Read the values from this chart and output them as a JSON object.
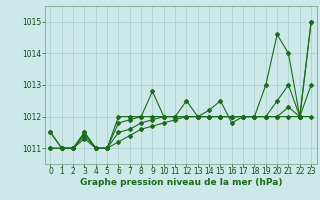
{
  "xlabel": "Graphe pression niveau de la mer (hPa)",
  "ylabel": "",
  "background_color": "#cce8e8",
  "grid_color": "#aacccc",
  "line_color": "#1a6b1a",
  "x": [
    0,
    1,
    2,
    3,
    4,
    5,
    6,
    7,
    8,
    9,
    10,
    11,
    12,
    13,
    14,
    15,
    16,
    17,
    18,
    19,
    20,
    21,
    22,
    23
  ],
  "series": [
    [
      1011.5,
      1011.0,
      1011.0,
      1011.5,
      1011.0,
      1011.0,
      1012.0,
      1012.0,
      1012.0,
      1012.8,
      1012.0,
      1012.0,
      1012.5,
      1012.0,
      1012.2,
      1012.5,
      1011.8,
      1012.0,
      1012.0,
      1013.0,
      1014.6,
      1014.0,
      1012.0,
      1015.0
    ],
    [
      1011.5,
      1011.0,
      1011.0,
      1011.5,
      1011.0,
      1011.0,
      1011.8,
      1011.9,
      1012.0,
      1012.0,
      1012.0,
      1012.0,
      1012.0,
      1012.0,
      1012.0,
      1012.0,
      1012.0,
      1012.0,
      1012.0,
      1012.0,
      1012.5,
      1013.0,
      1012.0,
      1015.0
    ],
    [
      1011.0,
      1011.0,
      1011.0,
      1011.4,
      1011.0,
      1011.0,
      1011.5,
      1011.6,
      1011.8,
      1011.9,
      1012.0,
      1012.0,
      1012.0,
      1012.0,
      1012.0,
      1012.0,
      1012.0,
      1012.0,
      1012.0,
      1012.0,
      1012.0,
      1012.3,
      1012.0,
      1013.0
    ],
    [
      1011.0,
      1011.0,
      1011.0,
      1011.3,
      1011.0,
      1011.0,
      1011.2,
      1011.4,
      1011.6,
      1011.7,
      1011.8,
      1011.9,
      1012.0,
      1012.0,
      1012.0,
      1012.0,
      1012.0,
      1012.0,
      1012.0,
      1012.0,
      1012.0,
      1012.0,
      1012.0,
      1012.0
    ]
  ],
  "ylim": [
    1010.5,
    1015.5
  ],
  "yticks": [
    1011,
    1012,
    1013,
    1014,
    1015
  ],
  "xticks": [
    0,
    1,
    2,
    3,
    4,
    5,
    6,
    7,
    8,
    9,
    10,
    11,
    12,
    13,
    14,
    15,
    16,
    17,
    18,
    19,
    20,
    21,
    22,
    23
  ],
  "marker": "D",
  "marker_size": 2.0,
  "linewidth": 0.8,
  "xlabel_fontsize": 6.5,
  "tick_fontsize": 5.5,
  "xlabel_color": "#1a6b1a",
  "tick_color": "#1a4a1a",
  "spine_color": "#779977"
}
